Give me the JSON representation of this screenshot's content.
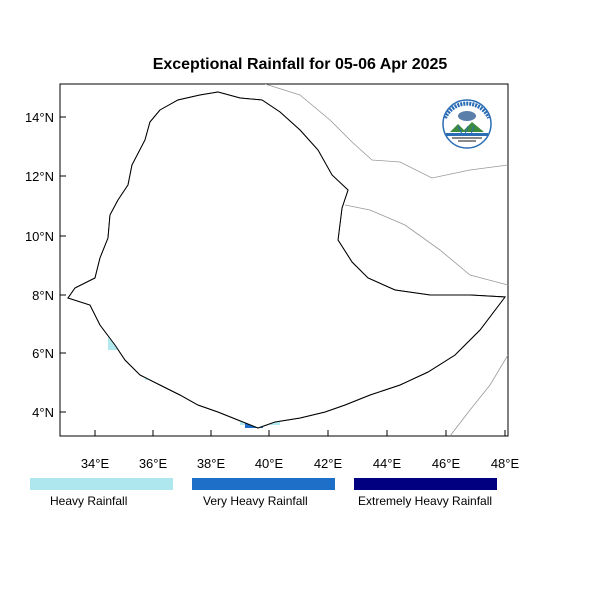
{
  "title": "Exceptional Rainfall for 05-06 Apr 2025",
  "axes": {
    "y_ticks": [
      "4°N",
      "6°N",
      "8°N",
      "10°N",
      "12°N",
      "14°N"
    ],
    "x_ticks": [
      "34°E",
      "36°E",
      "38°E",
      "40°E",
      "42°E",
      "44°E",
      "46°E",
      "48°E"
    ],
    "lon_range": [
      32.8,
      48.2
    ],
    "lat_range": [
      3.3,
      15.0
    ]
  },
  "legend": [
    {
      "label": "Heavy Rainfall",
      "color": "#aee8ee"
    },
    {
      "label": "Very Heavy Rainfall",
      "color": "#1e6fc8"
    },
    {
      "label": "Extremely Heavy Rainfall",
      "color": "#000080"
    }
  ],
  "logo": {
    "text": "ETHIOPIAN METEOROLOGY INSTITUTE",
    "icon": "ethiopian-meteorology-logo"
  },
  "colors": {
    "border": "#000000",
    "foreign_border": "#999999"
  }
}
